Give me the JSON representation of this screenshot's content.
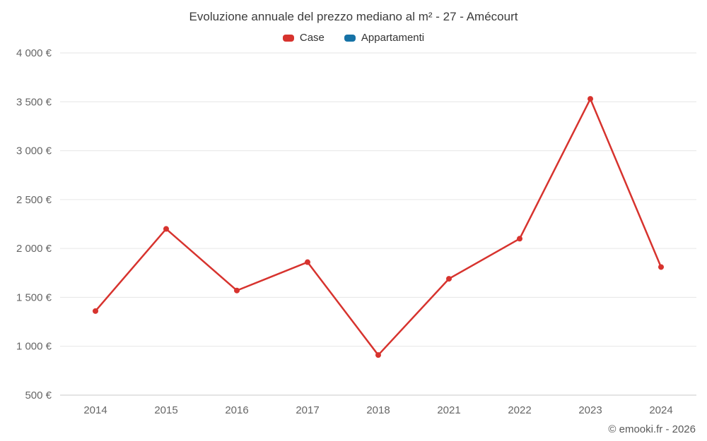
{
  "chart_data": {
    "type": "line",
    "title": "Evoluzione annuale del prezzo mediano al m² - 27 - Amécourt",
    "categories": [
      "2014",
      "2015",
      "2016",
      "2017",
      "2018",
      "2021",
      "2022",
      "2023",
      "2024"
    ],
    "series": [
      {
        "name": "Case",
        "color": "#d7332e",
        "values": [
          1360,
          2200,
          1570,
          1860,
          910,
          1690,
          2100,
          3530,
          1810
        ]
      },
      {
        "name": "Appartamenti",
        "color": "#1672a6",
        "values": []
      }
    ],
    "ylim": [
      500,
      4000
    ],
    "ytick_step": 500,
    "ytick_labels": [
      "500 €",
      "1 000 €",
      "1 500 €",
      "2 000 €",
      "2 500 €",
      "3 000 €",
      "3 500 €",
      "4 000 €"
    ],
    "grid": "horizontal",
    "legend_position": "top"
  },
  "footer": {
    "text": "© emooki.fr - 2026"
  }
}
